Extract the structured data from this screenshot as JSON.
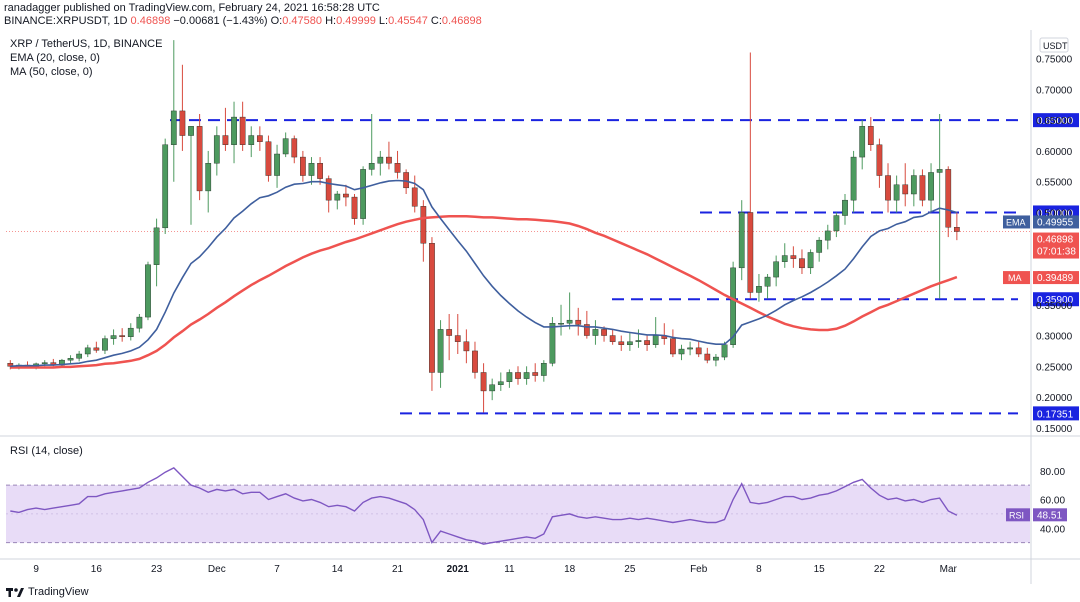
{
  "header": {
    "publisher": "ranadagger published on TradingView.com, February 24, 2021 16:58:28 UTC",
    "symbol": "BINANCE:XRPUSDT, 1D",
    "price": "0.46898",
    "change": "−0.00681 (−1.43%)",
    "o_label": "O:",
    "o": "0.47580",
    "h_label": "H:",
    "h": "0.49999",
    "l_label": "L:",
    "l": "0.45547",
    "c_label": "C:",
    "c": "0.46898"
  },
  "legend": {
    "title": "XRP / TetherUS, 1D, BINANCE",
    "ema": "EMA (20, close, 0)",
    "ma": "MA (50, close, 0)",
    "rsi": "RSI (14, close)"
  },
  "footer": {
    "brand": "TradingView"
  },
  "colors": {
    "up": "#26a69a",
    "down": "#ef5350",
    "candle_up": "#4d9a5f",
    "candle_down": "#d84a3e",
    "ema": "#2962ff",
    "ema_line": "#3f5f9e",
    "ma": "#ef5350",
    "level": "#1a23e0",
    "rsi": "#7e57c2",
    "rsi_band": "#e8dcf7"
  },
  "chart_data": [
    {
      "type": "candlestick",
      "title": "XRP / TetherUS, 1D, BINANCE",
      "y_axis_ticks": [
        "0.75000",
        "0.70000",
        "0.65000",
        "0.60000",
        "0.55000",
        "0.50000",
        "0.45000",
        "0.40000",
        "0.35000",
        "0.30000",
        "0.25000",
        "0.20000",
        "0.15000"
      ],
      "ylim": [
        0.14,
        0.79
      ],
      "y_axis_unit": "USDT",
      "x_axis_ticks": [
        "9",
        "16",
        "23",
        "Dec",
        "7",
        "14",
        "21",
        "2021",
        "11",
        "18",
        "25",
        "Feb",
        "8",
        "15",
        "22",
        "Mar"
      ],
      "horizontal_levels": [
        {
          "value": 0.65,
          "label": "0.65000"
        },
        {
          "value": 0.5,
          "label": "0.50000"
        },
        {
          "value": 0.359,
          "label": "0.35900"
        },
        {
          "value": 0.17351,
          "label": "0.17351"
        }
      ],
      "price_labels": [
        {
          "name": "EMA",
          "value": "0.49955"
        },
        {
          "name": "",
          "value": "0.46898"
        },
        {
          "name": "",
          "value": "07:01:38"
        },
        {
          "name": "MA",
          "value": "0.39489"
        }
      ],
      "candles": [
        [
          0.255,
          0.26,
          0.245,
          0.25
        ],
        [
          0.25,
          0.255,
          0.245,
          0.252
        ],
        [
          0.252,
          0.258,
          0.248,
          0.25
        ],
        [
          0.25,
          0.256,
          0.245,
          0.254
        ],
        [
          0.254,
          0.26,
          0.25,
          0.256
        ],
        [
          0.256,
          0.262,
          0.25,
          0.252
        ],
        [
          0.252,
          0.262,
          0.248,
          0.26
        ],
        [
          0.26,
          0.268,
          0.255,
          0.263
        ],
        [
          0.263,
          0.275,
          0.258,
          0.27
        ],
        [
          0.27,
          0.285,
          0.265,
          0.28
        ],
        [
          0.28,
          0.29,
          0.272,
          0.276
        ],
        [
          0.276,
          0.3,
          0.27,
          0.295
        ],
        [
          0.295,
          0.31,
          0.285,
          0.3
        ],
        [
          0.3,
          0.312,
          0.29,
          0.298
        ],
        [
          0.298,
          0.32,
          0.292,
          0.312
        ],
        [
          0.312,
          0.335,
          0.305,
          0.33
        ],
        [
          0.33,
          0.42,
          0.325,
          0.415
        ],
        [
          0.415,
          0.49,
          0.38,
          0.475
        ],
        [
          0.475,
          0.62,
          0.465,
          0.61
        ],
        [
          0.61,
          0.78,
          0.55,
          0.665
        ],
        [
          0.665,
          0.74,
          0.6,
          0.625
        ],
        [
          0.625,
          0.64,
          0.48,
          0.64
        ],
        [
          0.64,
          0.66,
          0.52,
          0.535
        ],
        [
          0.535,
          0.6,
          0.5,
          0.58
        ],
        [
          0.58,
          0.64,
          0.56,
          0.625
        ],
        [
          0.625,
          0.67,
          0.6,
          0.61
        ],
        [
          0.61,
          0.68,
          0.58,
          0.655
        ],
        [
          0.655,
          0.68,
          0.6,
          0.61
        ],
        [
          0.61,
          0.64,
          0.59,
          0.625
        ],
        [
          0.625,
          0.64,
          0.6,
          0.615
        ],
        [
          0.615,
          0.625,
          0.55,
          0.56
        ],
        [
          0.56,
          0.61,
          0.54,
          0.595
        ],
        [
          0.595,
          0.63,
          0.59,
          0.62
        ],
        [
          0.62,
          0.625,
          0.58,
          0.59
        ],
        [
          0.59,
          0.6,
          0.55,
          0.56
        ],
        [
          0.56,
          0.59,
          0.545,
          0.58
        ],
        [
          0.58,
          0.59,
          0.545,
          0.555
        ],
        [
          0.555,
          0.56,
          0.5,
          0.52
        ],
        [
          0.52,
          0.535,
          0.505,
          0.53
        ],
        [
          0.53,
          0.545,
          0.51,
          0.525
        ],
        [
          0.525,
          0.53,
          0.48,
          0.49
        ],
        [
          0.49,
          0.575,
          0.48,
          0.57
        ],
        [
          0.57,
          0.66,
          0.56,
          0.58
        ],
        [
          0.58,
          0.6,
          0.56,
          0.59
        ],
        [
          0.59,
          0.615,
          0.57,
          0.58
        ],
        [
          0.58,
          0.6,
          0.555,
          0.565
        ],
        [
          0.565,
          0.57,
          0.53,
          0.54
        ],
        [
          0.54,
          0.56,
          0.5,
          0.51
        ],
        [
          0.51,
          0.52,
          0.42,
          0.45
        ],
        [
          0.45,
          0.46,
          0.21,
          0.24
        ],
        [
          0.24,
          0.325,
          0.215,
          0.31
        ],
        [
          0.31,
          0.335,
          0.26,
          0.3
        ],
        [
          0.3,
          0.335,
          0.27,
          0.29
        ],
        [
          0.29,
          0.31,
          0.255,
          0.275
        ],
        [
          0.275,
          0.29,
          0.23,
          0.24
        ],
        [
          0.24,
          0.255,
          0.175,
          0.21
        ],
        [
          0.21,
          0.23,
          0.195,
          0.22
        ],
        [
          0.22,
          0.24,
          0.21,
          0.225
        ],
        [
          0.225,
          0.245,
          0.215,
          0.24
        ],
        [
          0.24,
          0.25,
          0.22,
          0.23
        ],
        [
          0.23,
          0.25,
          0.22,
          0.24
        ],
        [
          0.24,
          0.255,
          0.225,
          0.235
        ],
        [
          0.235,
          0.26,
          0.225,
          0.255
        ],
        [
          0.255,
          0.33,
          0.25,
          0.32
        ],
        [
          0.32,
          0.35,
          0.3,
          0.32
        ],
        [
          0.32,
          0.37,
          0.31,
          0.325
        ],
        [
          0.325,
          0.345,
          0.3,
          0.318
        ],
        [
          0.318,
          0.34,
          0.295,
          0.3
        ],
        [
          0.3,
          0.325,
          0.285,
          0.31
        ],
        [
          0.31,
          0.315,
          0.29,
          0.3
        ],
        [
          0.3,
          0.31,
          0.285,
          0.29
        ],
        [
          0.29,
          0.3,
          0.275,
          0.285
        ],
        [
          0.285,
          0.305,
          0.275,
          0.29
        ],
        [
          0.29,
          0.31,
          0.28,
          0.292
        ],
        [
          0.292,
          0.3,
          0.275,
          0.285
        ],
        [
          0.285,
          0.33,
          0.28,
          0.3
        ],
        [
          0.3,
          0.32,
          0.285,
          0.295
        ],
        [
          0.295,
          0.31,
          0.265,
          0.27
        ],
        [
          0.27,
          0.285,
          0.26,
          0.278
        ],
        [
          0.278,
          0.29,
          0.268,
          0.28
        ],
        [
          0.28,
          0.29,
          0.265,
          0.27
        ],
        [
          0.27,
          0.28,
          0.255,
          0.26
        ],
        [
          0.26,
          0.27,
          0.25,
          0.265
        ],
        [
          0.265,
          0.29,
          0.26,
          0.285
        ],
        [
          0.285,
          0.42,
          0.28,
          0.41
        ],
        [
          0.41,
          0.52,
          0.39,
          0.5
        ],
        [
          0.5,
          0.76,
          0.36,
          0.37
        ],
        [
          0.37,
          0.4,
          0.355,
          0.38
        ],
        [
          0.38,
          0.4,
          0.36,
          0.395
        ],
        [
          0.395,
          0.43,
          0.38,
          0.42
        ],
        [
          0.42,
          0.45,
          0.41,
          0.43
        ],
        [
          0.43,
          0.445,
          0.41,
          0.425
        ],
        [
          0.425,
          0.44,
          0.4,
          0.41
        ],
        [
          0.41,
          0.44,
          0.4,
          0.435
        ],
        [
          0.435,
          0.46,
          0.42,
          0.455
        ],
        [
          0.455,
          0.48,
          0.44,
          0.47
        ],
        [
          0.47,
          0.5,
          0.46,
          0.495
        ],
        [
          0.495,
          0.53,
          0.48,
          0.52
        ],
        [
          0.52,
          0.6,
          0.5,
          0.59
        ],
        [
          0.59,
          0.65,
          0.57,
          0.64
        ],
        [
          0.64,
          0.655,
          0.6,
          0.61
        ],
        [
          0.61,
          0.62,
          0.54,
          0.56
        ],
        [
          0.56,
          0.58,
          0.5,
          0.52
        ],
        [
          0.52,
          0.56,
          0.5,
          0.545
        ],
        [
          0.545,
          0.58,
          0.51,
          0.53
        ],
        [
          0.53,
          0.57,
          0.51,
          0.56
        ],
        [
          0.56,
          0.57,
          0.51,
          0.52
        ],
        [
          0.52,
          0.58,
          0.5,
          0.565
        ],
        [
          0.565,
          0.66,
          0.36,
          0.57
        ],
        [
          0.57,
          0.575,
          0.46,
          0.476
        ],
        [
          0.476,
          0.5,
          0.455,
          0.469
        ]
      ],
      "ema_points": [
        0.25,
        0.251,
        0.251,
        0.251,
        0.252,
        0.252,
        0.253,
        0.254,
        0.255,
        0.258,
        0.26,
        0.264,
        0.268,
        0.271,
        0.275,
        0.281,
        0.293,
        0.31,
        0.338,
        0.369,
        0.394,
        0.417,
        0.428,
        0.443,
        0.46,
        0.474,
        0.491,
        0.502,
        0.514,
        0.524,
        0.527,
        0.533,
        0.541,
        0.546,
        0.547,
        0.55,
        0.55,
        0.547,
        0.545,
        0.543,
        0.537,
        0.54,
        0.544,
        0.548,
        0.551,
        0.552,
        0.551,
        0.547,
        0.537,
        0.509,
        0.49,
        0.472,
        0.454,
        0.437,
        0.417,
        0.397,
        0.38,
        0.365,
        0.352,
        0.34,
        0.33,
        0.321,
        0.314,
        0.314,
        0.315,
        0.316,
        0.316,
        0.314,
        0.314,
        0.312,
        0.31,
        0.307,
        0.305,
        0.303,
        0.301,
        0.301,
        0.3,
        0.297,
        0.295,
        0.294,
        0.291,
        0.288,
        0.286,
        0.286,
        0.298,
        0.317,
        0.322,
        0.327,
        0.333,
        0.341,
        0.35,
        0.357,
        0.363,
        0.37,
        0.378,
        0.387,
        0.397,
        0.408,
        0.425,
        0.444,
        0.461,
        0.47,
        0.474,
        0.481,
        0.485,
        0.492,
        0.494,
        0.501,
        0.507,
        0.504,
        0.5
      ],
      "ma_points": [
        0.248,
        0.248,
        0.248,
        0.248,
        0.248,
        0.248,
        0.249,
        0.249,
        0.25,
        0.251,
        0.252,
        0.254,
        0.255,
        0.257,
        0.259,
        0.262,
        0.268,
        0.275,
        0.285,
        0.297,
        0.307,
        0.318,
        0.326,
        0.335,
        0.345,
        0.354,
        0.364,
        0.373,
        0.382,
        0.39,
        0.397,
        0.405,
        0.413,
        0.42,
        0.427,
        0.433,
        0.438,
        0.442,
        0.447,
        0.452,
        0.456,
        0.461,
        0.466,
        0.471,
        0.476,
        0.481,
        0.485,
        0.488,
        0.491,
        0.492,
        0.493,
        0.494,
        0.494,
        0.494,
        0.493,
        0.492,
        0.492,
        0.491,
        0.49,
        0.489,
        0.489,
        0.488,
        0.487,
        0.486,
        0.484,
        0.482,
        0.478,
        0.473,
        0.467,
        0.462,
        0.456,
        0.45,
        0.444,
        0.438,
        0.432,
        0.425,
        0.418,
        0.411,
        0.404,
        0.397,
        0.39,
        0.382,
        0.374,
        0.366,
        0.359,
        0.352,
        0.345,
        0.338,
        0.331,
        0.325,
        0.319,
        0.315,
        0.312,
        0.31,
        0.309,
        0.309,
        0.311,
        0.316,
        0.323,
        0.331,
        0.338,
        0.345,
        0.35,
        0.356,
        0.362,
        0.368,
        0.374,
        0.38,
        0.385,
        0.39,
        0.395
      ]
    },
    {
      "type": "line",
      "title": "RSI (14, close)",
      "y_axis_ticks": [
        "80.00",
        "60.00",
        "40.00"
      ],
      "ylim": [
        20,
        100
      ],
      "band": [
        30,
        70
      ],
      "last_value_label": {
        "name": "RSI",
        "value": "48.51"
      },
      "values": [
        52,
        51,
        53,
        54,
        53,
        54,
        55,
        56,
        57,
        62,
        62,
        64,
        65,
        66,
        67,
        68,
        72,
        75,
        79,
        82,
        76,
        70,
        68,
        65,
        67,
        66,
        67,
        64,
        65,
        65,
        60,
        62,
        64,
        61,
        59,
        60,
        58,
        55,
        56,
        55,
        52,
        58,
        61,
        62,
        61,
        59,
        57,
        53,
        46,
        30,
        38,
        36,
        34,
        32,
        31,
        29,
        30,
        31,
        32,
        33,
        34,
        33,
        36,
        48,
        49,
        50,
        48,
        47,
        48,
        47,
        46,
        46,
        47,
        46,
        47,
        46,
        45,
        44,
        45,
        46,
        45,
        44,
        44,
        46,
        60,
        71,
        58,
        57,
        58,
        60,
        62,
        62,
        60,
        61,
        63,
        64,
        66,
        69,
        72,
        74,
        68,
        63,
        60,
        61,
        59,
        60,
        58,
        60,
        61,
        52,
        49
      ]
    }
  ]
}
